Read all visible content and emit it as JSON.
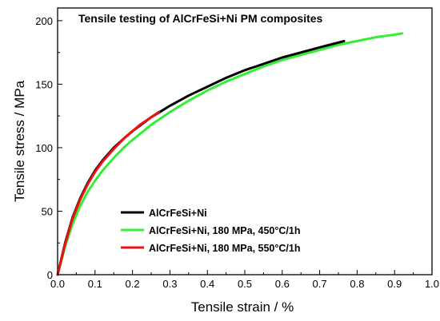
{
  "chart_data": {
    "type": "line",
    "title": "Tensile testing of AlCrFeSi+Ni PM composites",
    "xlabel": "Tensile strain / %",
    "ylabel": "Tensile stress / MPa",
    "xlim": [
      0,
      1.0
    ],
    "ylim": [
      0,
      210
    ],
    "x_ticks": [
      "0.0",
      "0.1",
      "0.2",
      "0.3",
      "0.4",
      "0.5",
      "0.6",
      "0.7",
      "0.8",
      "0.9",
      "1.0"
    ],
    "y_ticks": [
      "0",
      "50",
      "100",
      "150",
      "200"
    ],
    "grid": false,
    "legend_position": "bottom-center",
    "series": [
      {
        "name": "AlCrFeSi+Ni",
        "color": "#000000",
        "x": [
          0.0,
          0.02,
          0.04,
          0.06,
          0.08,
          0.1,
          0.12,
          0.15,
          0.18,
          0.2,
          0.25,
          0.3,
          0.35,
          0.4,
          0.45,
          0.5,
          0.55,
          0.6,
          0.65,
          0.7,
          0.74,
          0.765
        ],
        "y": [
          0,
          25,
          45,
          60,
          72,
          82,
          90,
          100,
          108,
          113,
          124,
          133,
          141,
          148,
          155,
          161,
          166,
          171,
          175,
          179,
          182,
          184
        ]
      },
      {
        "name": "AlCrFeSi+Ni, 180 MPa, 450°C/1h",
        "color": "#33ee33",
        "x": [
          0.0,
          0.02,
          0.04,
          0.06,
          0.08,
          0.1,
          0.12,
          0.15,
          0.18,
          0.2,
          0.25,
          0.3,
          0.35,
          0.4,
          0.45,
          0.5,
          0.55,
          0.6,
          0.65,
          0.7,
          0.75,
          0.8,
          0.85,
          0.9,
          0.92
        ],
        "y": [
          0,
          22,
          40,
          54,
          65,
          74,
          82,
          92,
          101,
          106,
          118,
          128,
          137,
          145,
          152,
          158,
          164,
          169,
          173,
          177,
          181,
          184,
          187,
          189,
          190
        ]
      },
      {
        "name": "AlCrFeSi+Ni, 180 MPa, 550°C/1h",
        "color": "#ee1111",
        "x": [
          0.0,
          0.02,
          0.04,
          0.06,
          0.08,
          0.1,
          0.12,
          0.15,
          0.18,
          0.2,
          0.22,
          0.25,
          0.27
        ],
        "y": [
          0,
          24,
          44,
          59,
          71,
          81,
          89,
          99,
          108,
          113,
          118,
          124,
          128
        ]
      }
    ]
  },
  "legend": {
    "labels": [
      "AlCrFeSi+Ni",
      "AlCrFeSi+Ni, 180 MPa, 450°C/1h",
      "AlCrFeSi+Ni, 180 MPa, 550°C/1h"
    ]
  }
}
